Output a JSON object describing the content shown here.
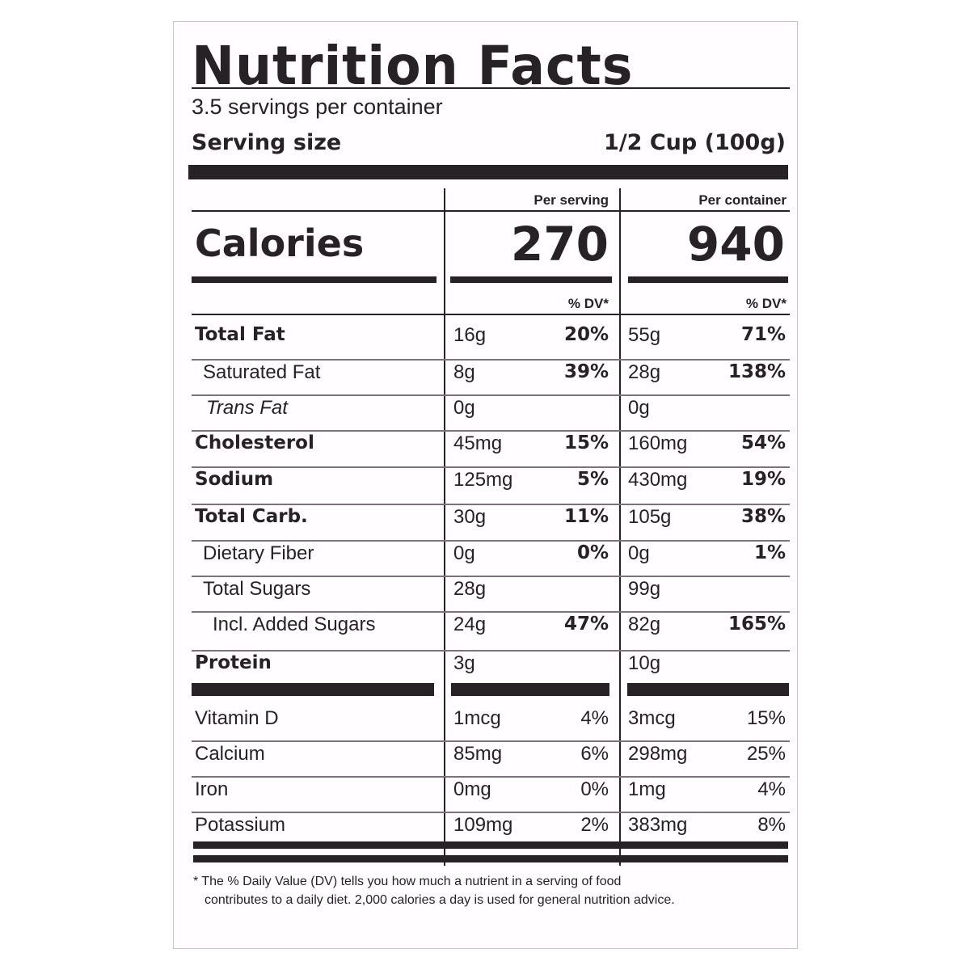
{
  "label": {
    "title": "Nutrition Facts",
    "servings_per_container": "3.5 servings per container",
    "serving_size_label": "Serving size",
    "serving_size_value": "1/2 Cup (100g)",
    "column_per_serving": "Per serving",
    "column_per_container": "Per container",
    "calories_label": "Calories",
    "calories_per_serving": "270",
    "calories_per_container": "940",
    "dv_header_serving": "% DV*",
    "dv_header_container": "% DV*",
    "nutrients": [
      {
        "name": "Total Fat",
        "serving_amount": "16g",
        "serving_dv": "20%",
        "container_amount": "55g",
        "container_dv": "71%"
      },
      {
        "name": "Saturated Fat",
        "serving_amount": "8g",
        "serving_dv": "39%",
        "container_amount": "28g",
        "container_dv": "138%"
      },
      {
        "name": "Trans Fat",
        "serving_amount": "0g",
        "serving_dv": "",
        "container_amount": "0g",
        "container_dv": ""
      },
      {
        "name": "Cholesterol",
        "serving_amount": "45mg",
        "serving_dv": "15%",
        "container_amount": "160mg",
        "container_dv": "54%"
      },
      {
        "name": "Sodium",
        "serving_amount": "125mg",
        "serving_dv": "5%",
        "container_amount": "430mg",
        "container_dv": "19%"
      },
      {
        "name": "Total Carb.",
        "serving_amount": "30g",
        "serving_dv": "11%",
        "container_amount": "105g",
        "container_dv": "38%"
      },
      {
        "name": "Dietary Fiber",
        "serving_amount": "0g",
        "serving_dv": "0%",
        "container_amount": "0g",
        "container_dv": "1%"
      },
      {
        "name": "Total Sugars",
        "serving_amount": "28g",
        "serving_dv": "",
        "container_amount": "99g",
        "container_dv": ""
      },
      {
        "name": "Incl. Added Sugars",
        "serving_amount": "24g",
        "serving_dv": "47%",
        "container_amount": "82g",
        "container_dv": "165%"
      },
      {
        "name": "Protein",
        "serving_amount": "3g",
        "serving_dv": "",
        "container_amount": "10g",
        "container_dv": ""
      }
    ],
    "vitamins": [
      {
        "name": "Vitamin D",
        "serving_amount": "1mcg",
        "serving_dv": "4%",
        "container_amount": "3mcg",
        "container_dv": "15%"
      },
      {
        "name": "Calcium",
        "serving_amount": "85mg",
        "serving_dv": "6%",
        "container_amount": "298mg",
        "container_dv": "25%"
      },
      {
        "name": "Iron",
        "serving_amount": "0mg",
        "serving_dv": "0%",
        "container_amount": "1mg",
        "container_dv": "4%"
      },
      {
        "name": "Potassium",
        "serving_amount": "109mg",
        "serving_dv": "2%",
        "container_amount": "383mg",
        "container_dv": "8%"
      }
    ],
    "footnote_line1": "* The % Daily Value (DV) tells you how much a nutrient in a serving of food",
    "footnote_line2": "contributes to a daily diet. 2,000 calories a day is used for general nutrition advice."
  }
}
